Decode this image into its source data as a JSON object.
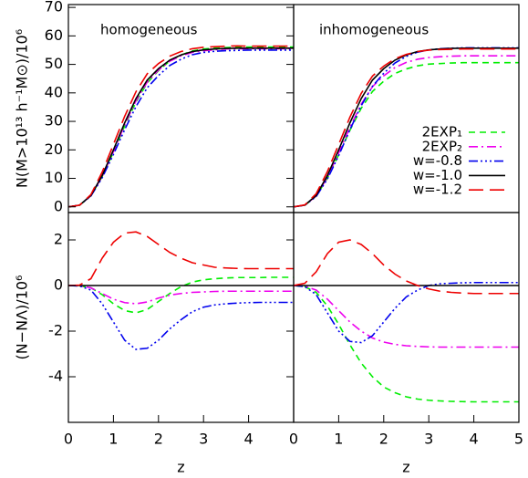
{
  "chart_data": [
    {
      "type": "line",
      "annotation": "homogeneous",
      "ylabel": "N(M>10¹³ h⁻¹M⊙)/10⁶",
      "x": [
        0,
        0.25,
        0.5,
        0.75,
        1,
        1.25,
        1.5,
        1.75,
        2,
        2.25,
        2.5,
        2.75,
        3,
        3.25,
        3.5,
        3.75,
        4,
        4.25,
        4.5,
        4.75,
        5
      ],
      "xlim": [
        0,
        5
      ],
      "ylim": [
        -2,
        71
      ],
      "yticks": [
        0,
        10,
        20,
        30,
        40,
        50,
        60,
        70
      ],
      "series": [
        {
          "color": "#00ee00",
          "dash": "dashed",
          "values": [
            0,
            0.6,
            3.9,
            10.6,
            19.2,
            28.4,
            36.8,
            43.5,
            47.8,
            51.2,
            53.3,
            54.7,
            55.4,
            55.7,
            55.9,
            56.1,
            56.1,
            56.1,
            56.1,
            56.1,
            56.1
          ]
        },
        {
          "color": "#ee00ee",
          "dash": "dashdot",
          "values": [
            0,
            0.6,
            3.9,
            10.7,
            19.4,
            28.8,
            37.2,
            43.8,
            48.0,
            51.1,
            53.0,
            54.2,
            54.8,
            55.1,
            55.4,
            55.5,
            55.5,
            55.5,
            55.5,
            55.5,
            55.5
          ]
        },
        {
          "color": "#0000ee",
          "dash": "dashdotdot",
          "values": [
            0,
            0.6,
            3.8,
            10.2,
            18.4,
            27.1,
            35.2,
            41.8,
            46.1,
            49.6,
            51.8,
            53.4,
            54.2,
            54.6,
            54.8,
            54.9,
            55.0,
            55.0,
            55.0,
            55.0,
            55.0
          ]
        },
        {
          "color": "#000000",
          "dash": "solid",
          "values": [
            0,
            0.6,
            4,
            11,
            20,
            29.5,
            38,
            44.5,
            48.5,
            51.5,
            53.3,
            54.5,
            55.1,
            55.4,
            55.6,
            55.7,
            55.7,
            55.7,
            55.7,
            55.7,
            55.7
          ]
        },
        {
          "color": "#ee0000",
          "dash": "longdash",
          "values": [
            0,
            0.6,
            4.3,
            12.2,
            21.9,
            31.8,
            40.4,
            46.7,
            50.3,
            52.9,
            54.5,
            55.5,
            56.0,
            56.2,
            56.4,
            56.5,
            56.4,
            56.4,
            56.4,
            56.4,
            56.4
          ]
        }
      ]
    },
    {
      "type": "line",
      "annotation": "inhomogeneous",
      "legend": "lower right",
      "x": [
        0,
        0.25,
        0.5,
        0.75,
        1,
        1.25,
        1.5,
        1.75,
        2,
        2.25,
        2.5,
        2.75,
        3,
        3.25,
        3.5,
        3.75,
        4,
        4.25,
        4.5,
        4.75,
        5
      ],
      "xlim": [
        0,
        5
      ],
      "ylim": [
        -2,
        71
      ],
      "series": [
        {
          "name": "2EXP₁",
          "color": "#00ee00",
          "dash": "dashed",
          "values": [
            0,
            0.6,
            3.7,
            10.1,
            18.3,
            26.9,
            34.6,
            40.5,
            44.1,
            46.8,
            48.4,
            49.5,
            50.1,
            50.3,
            50.5,
            50.6,
            50.6,
            50.6,
            50.6,
            50.6,
            50.6
          ]
        },
        {
          "name": "2EXP₂",
          "color": "#ee00ee",
          "dash": "dashdot",
          "values": [
            0,
            0.6,
            3.8,
            10.4,
            18.9,
            27.9,
            36.0,
            42.2,
            46.0,
            48.9,
            50.7,
            51.8,
            52.4,
            52.7,
            52.9,
            53.0,
            53.0,
            53.0,
            53.0,
            53.0,
            53.0
          ]
        },
        {
          "name": "w=-0.8",
          "color": "#0000ee",
          "dash": "dashdotdot",
          "values": [
            0,
            0.6,
            3.6,
            9.8,
            18.0,
            27.1,
            35.5,
            42.3,
            46.9,
            50.5,
            52.8,
            54.3,
            55.1,
            55.5,
            55.7,
            55.8,
            55.8,
            55.8,
            55.8,
            55.8,
            55.8
          ]
        },
        {
          "name": "w=-1.0",
          "color": "#000000",
          "dash": "solid",
          "values": [
            0,
            0.6,
            4,
            11,
            20,
            29.5,
            38,
            44.5,
            48.5,
            51.5,
            53.3,
            54.5,
            55.1,
            55.4,
            55.6,
            55.7,
            55.7,
            55.7,
            55.7,
            55.7,
            55.7
          ]
        },
        {
          "name": "w=-1.2",
          "color": "#ee0000",
          "dash": "longdash",
          "values": [
            0,
            0.7,
            4.6,
            12.4,
            21.9,
            31.5,
            39.8,
            45.9,
            49.4,
            52.0,
            53.5,
            54.5,
            55.0,
            55.2,
            55.3,
            55.4,
            55.4,
            55.4,
            55.4,
            55.4,
            55.4
          ]
        }
      ]
    },
    {
      "type": "line",
      "ylabel": "(N−NΛ)/10⁶",
      "xlabel": "z",
      "x": [
        0,
        0.25,
        0.5,
        0.75,
        1,
        1.25,
        1.5,
        1.75,
        2,
        2.25,
        2.5,
        2.75,
        3,
        3.25,
        3.5,
        3.75,
        4,
        4.25,
        4.5,
        4.75,
        5
      ],
      "xlim": [
        0,
        5
      ],
      "xticks": [
        0,
        1,
        2,
        3,
        4
      ],
      "ylim": [
        -6,
        3.2
      ],
      "yticks": [
        -4,
        -2,
        0,
        2
      ],
      "series": [
        {
          "color": "#00ee00",
          "dash": "dashed",
          "values": [
            0,
            -0.01,
            -0.1,
            -0.4,
            -0.8,
            -1.1,
            -1.2,
            -1.05,
            -0.7,
            -0.35,
            -0.05,
            0.15,
            0.25,
            0.3,
            0.33,
            0.35,
            0.35,
            0.35,
            0.36,
            0.36,
            0.36
          ]
        },
        {
          "color": "#ee00ee",
          "dash": "dashdot",
          "values": [
            0,
            -0.01,
            -0.1,
            -0.35,
            -0.6,
            -0.75,
            -0.8,
            -0.72,
            -0.55,
            -0.42,
            -0.35,
            -0.3,
            -0.28,
            -0.26,
            -0.25,
            -0.25,
            -0.25,
            -0.25,
            -0.25,
            -0.25,
            -0.25
          ]
        },
        {
          "color": "#0000ee",
          "dash": "dashdotdot",
          "values": [
            0,
            -0.02,
            -0.2,
            -0.8,
            -1.6,
            -2.4,
            -2.8,
            -2.75,
            -2.4,
            -1.9,
            -1.5,
            -1.15,
            -0.95,
            -0.85,
            -0.8,
            -0.77,
            -0.75,
            -0.74,
            -0.74,
            -0.74,
            -0.74
          ]
        },
        {
          "color": "#000000",
          "dash": "solid",
          "values": [
            0,
            0,
            0,
            0,
            0,
            0,
            0,
            0,
            0,
            0,
            0,
            0,
            0,
            0,
            0,
            0,
            0,
            0,
            0,
            0,
            0
          ]
        },
        {
          "color": "#ee0000",
          "dash": "longdash",
          "values": [
            0,
            0.02,
            0.3,
            1.2,
            1.9,
            2.3,
            2.35,
            2.15,
            1.8,
            1.45,
            1.2,
            1.0,
            0.9,
            0.8,
            0.77,
            0.75,
            0.74,
            0.74,
            0.74,
            0.74,
            0.74
          ]
        }
      ]
    },
    {
      "type": "line",
      "xlabel": "z",
      "x": [
        0,
        0.25,
        0.5,
        0.75,
        1,
        1.25,
        1.5,
        1.75,
        2,
        2.25,
        2.5,
        2.75,
        3,
        3.25,
        3.5,
        3.75,
        4,
        4.25,
        4.5,
        4.75,
        5
      ],
      "xlim": [
        0,
        5
      ],
      "xticks": [
        0,
        1,
        2,
        3,
        4,
        5
      ],
      "ylim": [
        -6,
        3.2
      ],
      "series": [
        {
          "color": "#00ee00",
          "dash": "dashed",
          "values": [
            0,
            -0.05,
            -0.3,
            -0.9,
            -1.7,
            -2.6,
            -3.4,
            -4.0,
            -4.45,
            -4.7,
            -4.88,
            -4.98,
            -5.03,
            -5.06,
            -5.08,
            -5.09,
            -5.1,
            -5.1,
            -5.1,
            -5.1,
            -5.1
          ]
        },
        {
          "color": "#ee00ee",
          "dash": "dashdot",
          "values": [
            0,
            -0.03,
            -0.2,
            -0.6,
            -1.1,
            -1.6,
            -2.0,
            -2.3,
            -2.48,
            -2.58,
            -2.64,
            -2.67,
            -2.69,
            -2.7,
            -2.7,
            -2.7,
            -2.7,
            -2.7,
            -2.7,
            -2.7,
            -2.7
          ]
        },
        {
          "color": "#0000ee",
          "dash": "dashdotdot",
          "values": [
            0,
            -0.05,
            -0.4,
            -1.2,
            -2.0,
            -2.45,
            -2.5,
            -2.2,
            -1.6,
            -1.0,
            -0.5,
            -0.2,
            0.0,
            0.08,
            0.1,
            0.12,
            0.13,
            0.13,
            0.13,
            0.13,
            0.13
          ]
        },
        {
          "color": "#000000",
          "dash": "solid",
          "values": [
            0,
            0,
            0,
            0,
            0,
            0,
            0,
            0,
            0,
            0,
            0,
            0,
            0,
            0,
            0,
            0,
            0,
            0,
            0,
            0,
            0
          ]
        },
        {
          "color": "#ee0000",
          "dash": "longdash",
          "values": [
            0,
            0.1,
            0.6,
            1.4,
            1.9,
            2.0,
            1.8,
            1.4,
            0.9,
            0.5,
            0.2,
            0.0,
            -0.15,
            -0.25,
            -0.3,
            -0.33,
            -0.35,
            -0.35,
            -0.35,
            -0.35,
            -0.35
          ]
        }
      ]
    }
  ]
}
